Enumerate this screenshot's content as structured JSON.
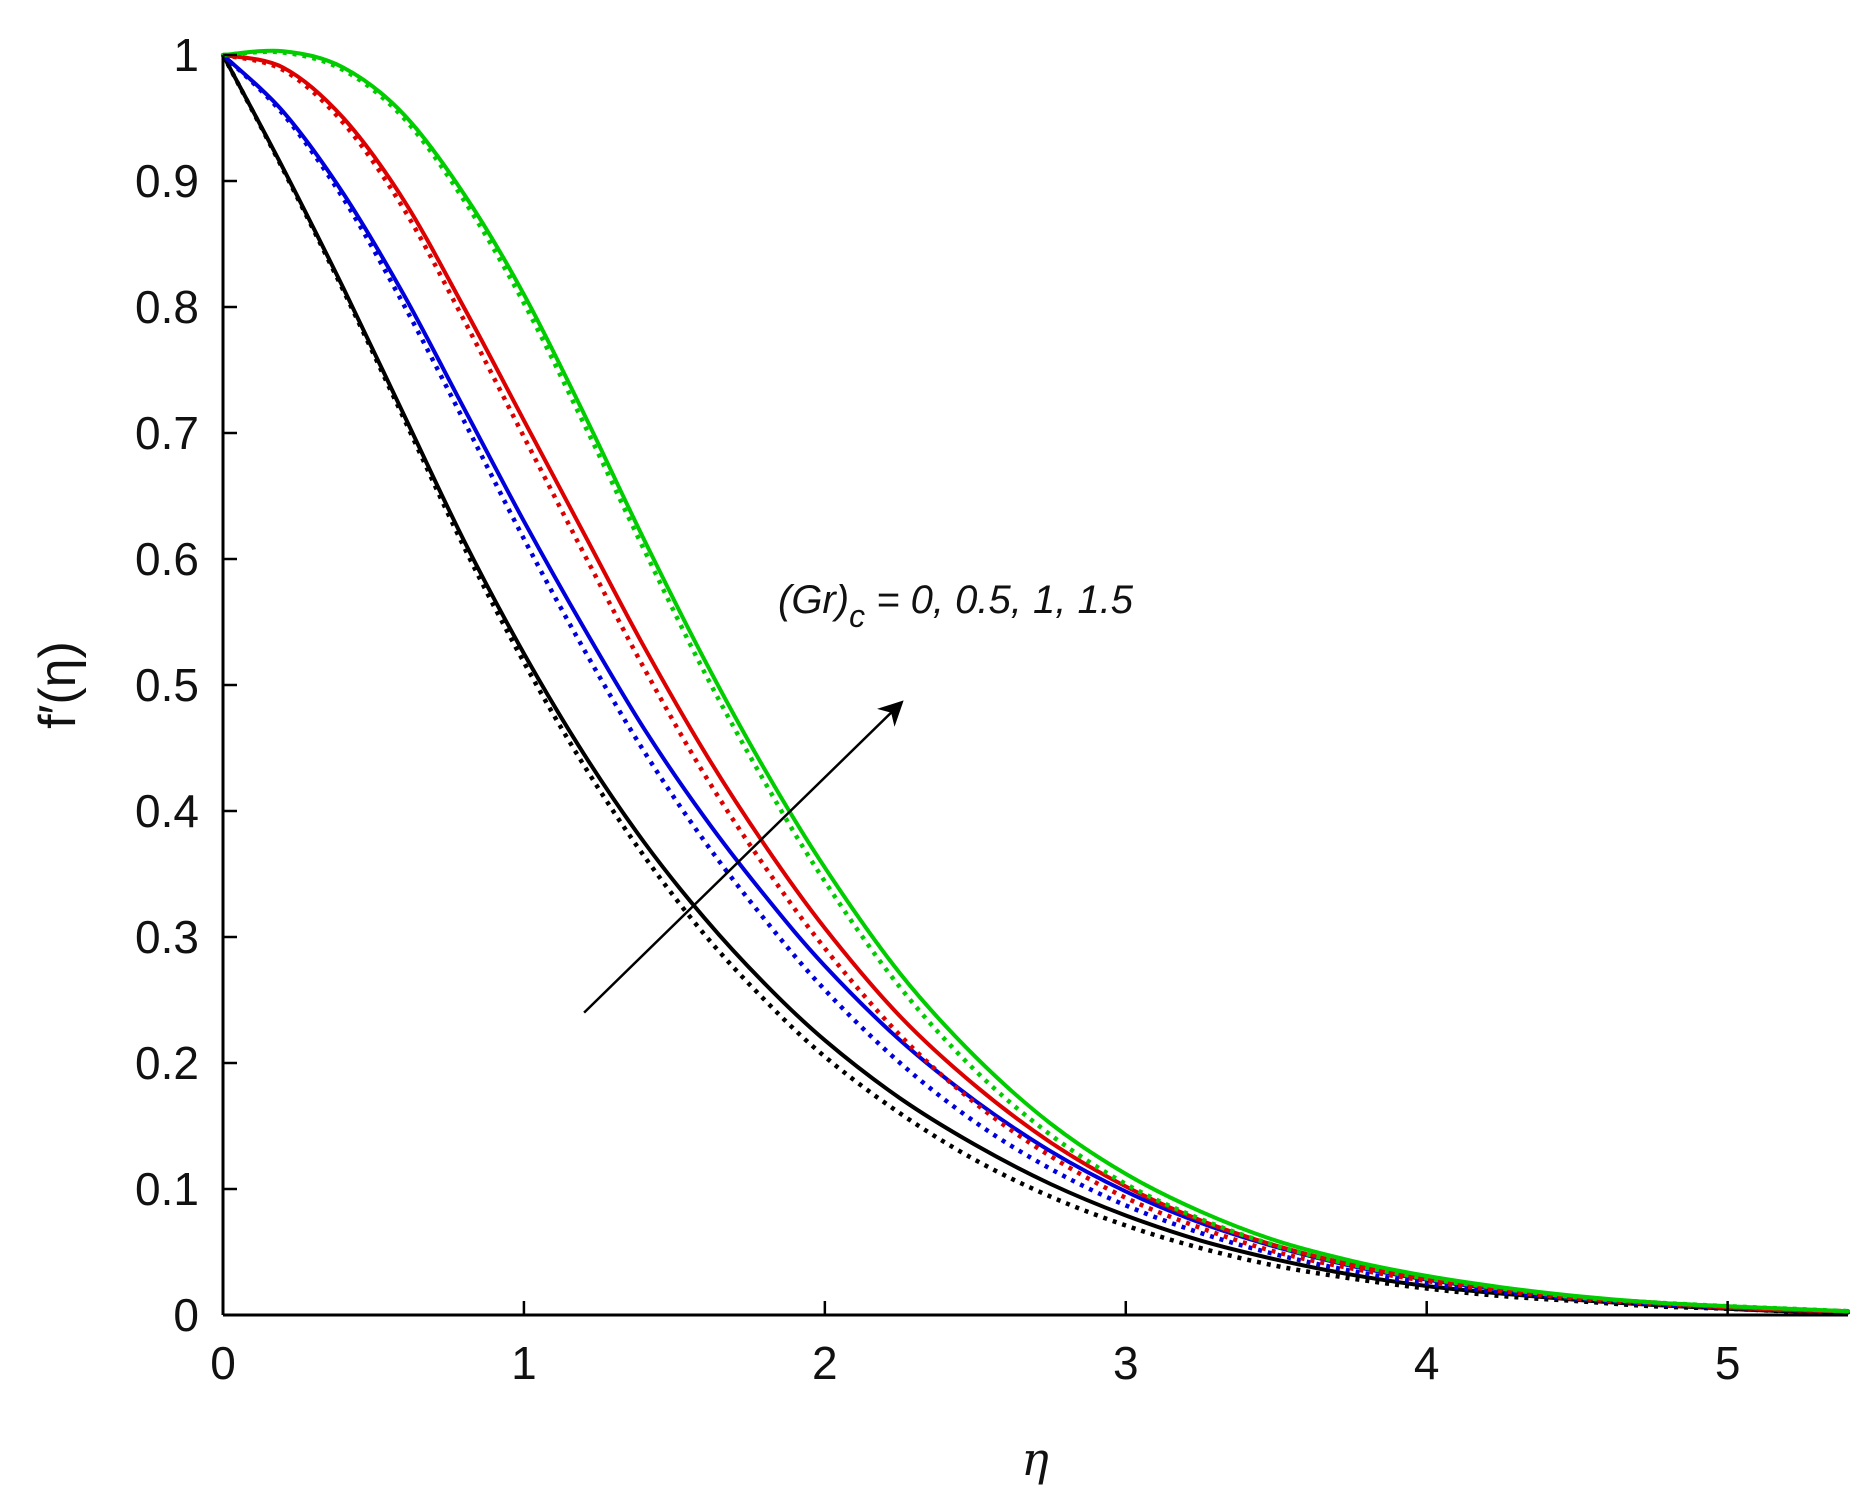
{
  "chart_data": {
    "type": "line",
    "xlabel": "η",
    "ylabel": "f′(η)",
    "xlim": [
      0,
      5.4
    ],
    "ylim": [
      0,
      1
    ],
    "x_ticks": [
      0,
      1,
      2,
      3,
      4,
      5
    ],
    "y_ticks": [
      0,
      0.1,
      0.2,
      0.3,
      0.4,
      0.5,
      0.6,
      0.7,
      0.8,
      0.9,
      1
    ],
    "x_tick_labels": [
      "0",
      "1",
      "2",
      "3",
      "4",
      "5"
    ],
    "y_tick_labels": [
      "0",
      "0.1",
      "0.2",
      "0.3",
      "0.4",
      "0.5",
      "0.6",
      "0.7",
      "0.8",
      "0.9",
      "1"
    ],
    "grid": false,
    "legend": "none",
    "annotation": {
      "text": "(Gr)",
      "subscript": "c",
      "suffix": " = 0, 0.5, 1, 1.5",
      "arrow_from": [
        1.2,
        0.24
      ],
      "arrow_to": [
        2.25,
        0.485
      ]
    },
    "x": [
      0,
      0.2,
      0.4,
      0.6,
      0.8,
      1.0,
      1.2,
      1.4,
      1.6,
      1.8,
      2.0,
      2.25,
      2.5,
      2.75,
      3.0,
      3.25,
      3.5,
      3.75,
      4.0,
      4.25,
      4.5,
      4.75,
      5.0,
      5.2,
      5.4
    ],
    "series": [
      {
        "color": "#000000",
        "dash": "solid",
        "values": [
          1.0,
          0.91,
          0.815,
          0.715,
          0.615,
          0.525,
          0.445,
          0.375,
          0.315,
          0.263,
          0.218,
          0.172,
          0.135,
          0.104,
          0.079,
          0.059,
          0.044,
          0.032,
          0.023,
          0.017,
          0.012,
          0.008,
          0.005,
          0.003,
          0.002
        ]
      },
      {
        "color": "#000000",
        "dash": "dotted",
        "values": [
          1.0,
          0.909,
          0.813,
          0.712,
          0.61,
          0.518,
          0.436,
          0.364,
          0.302,
          0.25,
          0.205,
          0.16,
          0.123,
          0.094,
          0.071,
          0.053,
          0.039,
          0.029,
          0.021,
          0.015,
          0.011,
          0.007,
          0.005,
          0.003,
          0.002
        ]
      },
      {
        "color": "#0000dd",
        "dash": "solid",
        "values": [
          1.0,
          0.955,
          0.89,
          0.81,
          0.72,
          0.63,
          0.545,
          0.465,
          0.395,
          0.333,
          0.277,
          0.218,
          0.17,
          0.13,
          0.098,
          0.073,
          0.054,
          0.039,
          0.028,
          0.02,
          0.014,
          0.009,
          0.006,
          0.004,
          0.003
        ]
      },
      {
        "color": "#0000dd",
        "dash": "dotted",
        "values": [
          1.0,
          0.953,
          0.886,
          0.802,
          0.71,
          0.616,
          0.528,
          0.447,
          0.376,
          0.314,
          0.258,
          0.2,
          0.153,
          0.116,
          0.087,
          0.065,
          0.048,
          0.035,
          0.025,
          0.018,
          0.013,
          0.009,
          0.006,
          0.004,
          0.003
        ]
      },
      {
        "color": "#dd0000",
        "dash": "solid",
        "values": [
          1.0,
          0.99,
          0.95,
          0.885,
          0.8,
          0.71,
          0.62,
          0.53,
          0.447,
          0.373,
          0.307,
          0.237,
          0.182,
          0.137,
          0.102,
          0.075,
          0.055,
          0.04,
          0.029,
          0.021,
          0.014,
          0.01,
          0.006,
          0.004,
          0.003
        ]
      },
      {
        "color": "#dd0000",
        "dash": "dotted",
        "values": [
          1.0,
          0.988,
          0.946,
          0.878,
          0.79,
          0.697,
          0.604,
          0.513,
          0.429,
          0.356,
          0.291,
          0.222,
          0.168,
          0.126,
          0.093,
          0.069,
          0.05,
          0.037,
          0.027,
          0.019,
          0.013,
          0.009,
          0.006,
          0.004,
          0.003
        ]
      },
      {
        "color": "#00cc00",
        "dash": "solid",
        "values": [
          1.0,
          1.003,
          0.99,
          0.953,
          0.89,
          0.81,
          0.715,
          0.615,
          0.52,
          0.433,
          0.355,
          0.271,
          0.205,
          0.152,
          0.112,
          0.082,
          0.059,
          0.043,
          0.031,
          0.022,
          0.015,
          0.01,
          0.007,
          0.005,
          0.003
        ]
      },
      {
        "color": "#00cc00",
        "dash": "dotted",
        "values": [
          1.0,
          1.002,
          0.988,
          0.95,
          0.885,
          0.803,
          0.707,
          0.607,
          0.51,
          0.423,
          0.344,
          0.26,
          0.194,
          0.143,
          0.104,
          0.076,
          0.055,
          0.04,
          0.029,
          0.021,
          0.014,
          0.01,
          0.007,
          0.005,
          0.003
        ]
      }
    ]
  }
}
